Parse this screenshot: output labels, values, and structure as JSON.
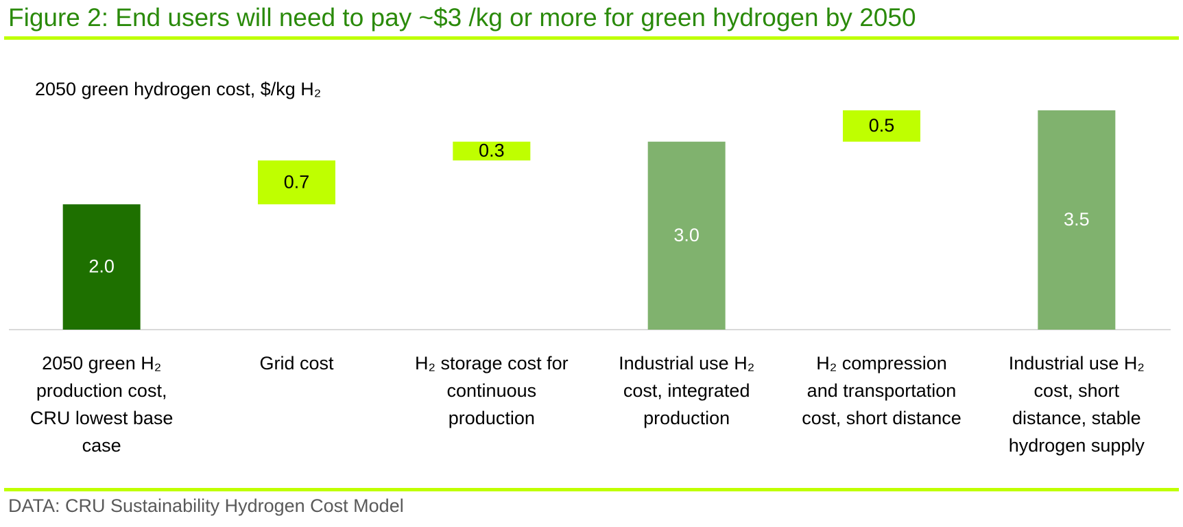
{
  "chart_data": {
    "type": "waterfall",
    "title": "Figure 2: End users will need to pay ~$3 /kg or more for green hydrogen by 2050",
    "subtitle": "2050 green hydrogen cost, $/kg H₂",
    "source": "DATA: CRU Sustainability Hydrogen Cost Model",
    "categories": [
      "2050 green H₂\nproduction cost,\nCRU lowest base\ncase",
      "Grid cost",
      "H₂ storage cost for\ncontinuous\nproduction",
      "Industrial use H₂\ncost, integrated\nproduction",
      "H₂ compression\nand transportation\ncost, short distance",
      "Industrial use H₂\ncost, short\ndistance, stable\nhydrogen supply"
    ],
    "values": [
      2.0,
      0.7,
      0.3,
      3.0,
      0.5,
      3.5
    ],
    "value_labels": [
      "2.0",
      "0.7",
      "0.3",
      "3.0",
      "0.5",
      "3.5"
    ],
    "roles": [
      "total",
      "increase",
      "increase",
      "total",
      "increase",
      "total"
    ],
    "colors": [
      "#1e7000",
      "#bfff00",
      "#bfff00",
      "#80b26e",
      "#bfff00",
      "#80b26e"
    ],
    "label_colors": [
      "#ffffff",
      "#000000",
      "#000000",
      "#ffffff",
      "#000000",
      "#ffffff"
    ],
    "ylim": [
      0,
      3.5
    ]
  }
}
